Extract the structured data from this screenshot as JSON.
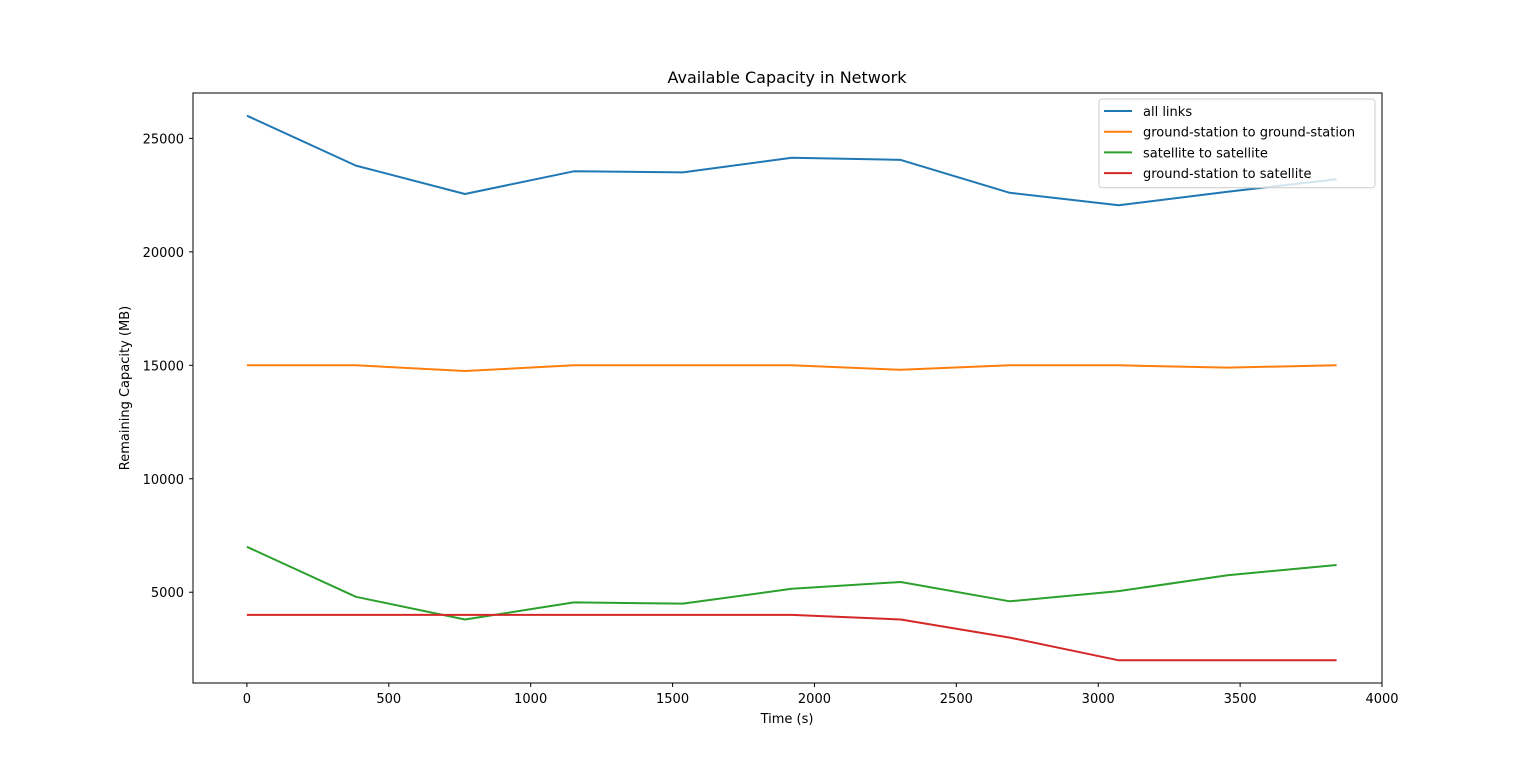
{
  "chart_data": {
    "type": "line",
    "title": "Available Capacity in Network",
    "xlabel": "Time (s)",
    "ylabel": "Remaining Capacity (MB)",
    "xlim": [
      -190,
      4000
    ],
    "ylim": [
      1000,
      27000
    ],
    "xticks": [
      0,
      500,
      1000,
      1500,
      2000,
      2500,
      3000,
      3500,
      4000
    ],
    "yticks": [
      5000,
      10000,
      15000,
      20000,
      25000
    ],
    "grid": false,
    "legend_position": "top-right",
    "x": [
      0,
      384,
      768,
      1152,
      1536,
      1920,
      2304,
      2688,
      3072,
      3456,
      3840
    ],
    "series": [
      {
        "name": "all links",
        "color": "#1f77b4",
        "values": [
          26000,
          23800,
          22550,
          23550,
          23500,
          24150,
          24050,
          22600,
          22050,
          22650,
          23200
        ]
      },
      {
        "name": "ground-station to ground-station",
        "color": "#ff7f0e",
        "values": [
          15000,
          15000,
          14750,
          15000,
          15000,
          15000,
          14800,
          15000,
          15000,
          14900,
          15000
        ]
      },
      {
        "name": "satellite to satellite",
        "color": "#2ca02c",
        "values": [
          7000,
          4800,
          3800,
          4550,
          4500,
          5150,
          5450,
          4600,
          5050,
          5750,
          6200
        ]
      },
      {
        "name": "ground-station to satellite",
        "color": "#d62728",
        "values": [
          4000,
          4000,
          4000,
          4000,
          4000,
          4000,
          3800,
          3000,
          2000,
          2000,
          2000
        ]
      }
    ]
  }
}
